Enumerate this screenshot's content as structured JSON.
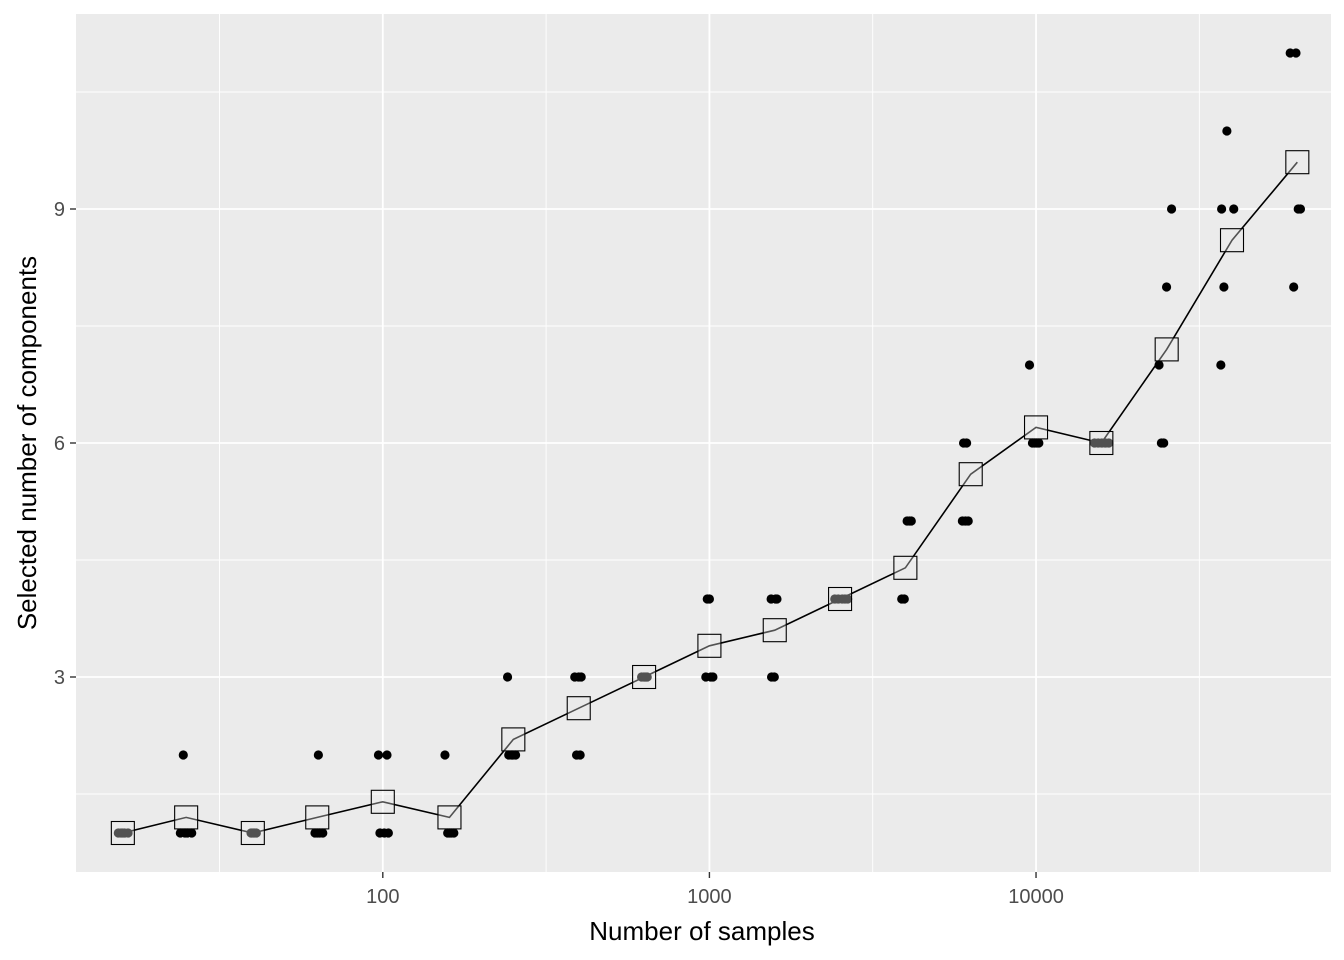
{
  "chart_data": {
    "type": "scatter",
    "xlabel": "Number of samples",
    "ylabel": "Selected number of components",
    "x_scale": "log10",
    "xlim": [
      11.5,
      80000
    ],
    "ylim": [
      0.5,
      11.5
    ],
    "x_ticks": [
      100,
      1000,
      10000
    ],
    "x_tick_labels": [
      "100",
      "1000",
      "10000"
    ],
    "y_ticks": [
      3,
      6,
      9
    ],
    "y_tick_labels": [
      "3",
      "6",
      "9"
    ],
    "grid": true,
    "legend": "none",
    "colors": {
      "panel_background": "#ebebeb",
      "grid": "#ffffff",
      "points": "#000000",
      "mean_line": "#000000",
      "mean_marker_fill": "#ebebeb"
    },
    "series": [
      {
        "kind": "points",
        "points": [
          [
            15.8,
            1
          ],
          [
            16.2,
            1
          ],
          [
            16.6,
            1
          ],
          [
            15.5,
            1
          ],
          [
            16.0,
            1
          ],
          [
            24.5,
            2
          ],
          [
            24.0,
            1
          ],
          [
            25.2,
            1
          ],
          [
            26.0,
            1
          ],
          [
            24.8,
            1
          ],
          [
            39.5,
            1
          ],
          [
            40.5,
            1
          ],
          [
            41.0,
            1
          ],
          [
            39.8,
            1
          ],
          [
            40.2,
            1
          ],
          [
            63.5,
            2
          ],
          [
            62.0,
            1
          ],
          [
            64.0,
            1
          ],
          [
            65.5,
            1
          ],
          [
            63.0,
            1
          ],
          [
            97.0,
            2
          ],
          [
            103.0,
            2
          ],
          [
            98.0,
            1
          ],
          [
            101.0,
            1
          ],
          [
            104.0,
            1
          ],
          [
            155.0,
            2
          ],
          [
            158.0,
            1
          ],
          [
            162.0,
            1
          ],
          [
            165.0,
            1
          ],
          [
            160.0,
            1
          ],
          [
            241.0,
            3
          ],
          [
            243.0,
            2
          ],
          [
            248.0,
            2
          ],
          [
            255.0,
            2
          ],
          [
            250.0,
            2
          ],
          [
            387.0,
            3
          ],
          [
            405.0,
            3
          ],
          [
            392.0,
            2
          ],
          [
            402.0,
            2
          ],
          [
            398.0,
            3
          ],
          [
            620.0,
            3
          ],
          [
            630.0,
            3
          ],
          [
            640.0,
            3
          ],
          [
            645.0,
            3
          ],
          [
            635.0,
            3
          ],
          [
            985.0,
            4
          ],
          [
            975.0,
            3
          ],
          [
            1010.0,
            3
          ],
          [
            1025.0,
            3
          ],
          [
            1000.0,
            4
          ],
          [
            1545.0,
            4
          ],
          [
            1610.0,
            4
          ],
          [
            1550.0,
            3
          ],
          [
            1580.0,
            3
          ],
          [
            1595.0,
            4
          ],
          [
            2420.0,
            4
          ],
          [
            2480.0,
            4
          ],
          [
            2550.0,
            4
          ],
          [
            2600.0,
            4
          ],
          [
            2650.0,
            4
          ],
          [
            3880.0,
            4
          ],
          [
            3950.0,
            4
          ],
          [
            4030.0,
            5
          ],
          [
            4100.0,
            5
          ],
          [
            4150.0,
            5
          ],
          [
            6000.0,
            6
          ],
          [
            6130.0,
            6
          ],
          [
            5950.0,
            5
          ],
          [
            6080.0,
            5
          ],
          [
            6200.0,
            5
          ],
          [
            9550.0,
            7
          ],
          [
            9750.0,
            6
          ],
          [
            9900.0,
            6
          ],
          [
            10050.0,
            6
          ],
          [
            10200.0,
            6
          ],
          [
            15100.0,
            6
          ],
          [
            15500.0,
            6
          ],
          [
            15900.0,
            6
          ],
          [
            16300.0,
            6
          ],
          [
            16700.0,
            6
          ],
          [
            23800.0,
            7
          ],
          [
            24200.0,
            6
          ],
          [
            24600.0,
            6
          ],
          [
            25100.0,
            8
          ],
          [
            26000.0,
            9
          ],
          [
            37000.0,
            9
          ],
          [
            37600.0,
            8
          ],
          [
            38400.0,
            10
          ],
          [
            36800.0,
            7
          ],
          [
            40300.0,
            9
          ],
          [
            60000.0,
            11
          ],
          [
            62500.0,
            11
          ],
          [
            61500.0,
            8
          ],
          [
            63500.0,
            9
          ],
          [
            64500.0,
            9
          ]
        ]
      },
      {
        "kind": "mean",
        "points": [
          [
            16,
            1.0
          ],
          [
            25,
            1.2
          ],
          [
            40,
            1.0
          ],
          [
            63,
            1.2
          ],
          [
            100,
            1.4
          ],
          [
            160,
            1.2
          ],
          [
            251,
            2.2
          ],
          [
            398,
            2.6
          ],
          [
            631,
            3.0
          ],
          [
            1000,
            3.4
          ],
          [
            1585,
            3.6
          ],
          [
            2512,
            4.0
          ],
          [
            3981,
            4.4
          ],
          [
            6310,
            5.6
          ],
          [
            10000,
            6.2
          ],
          [
            15849,
            6.0
          ],
          [
            25119,
            7.2
          ],
          [
            39811,
            8.6
          ],
          [
            63096,
            9.6
          ]
        ]
      }
    ]
  }
}
